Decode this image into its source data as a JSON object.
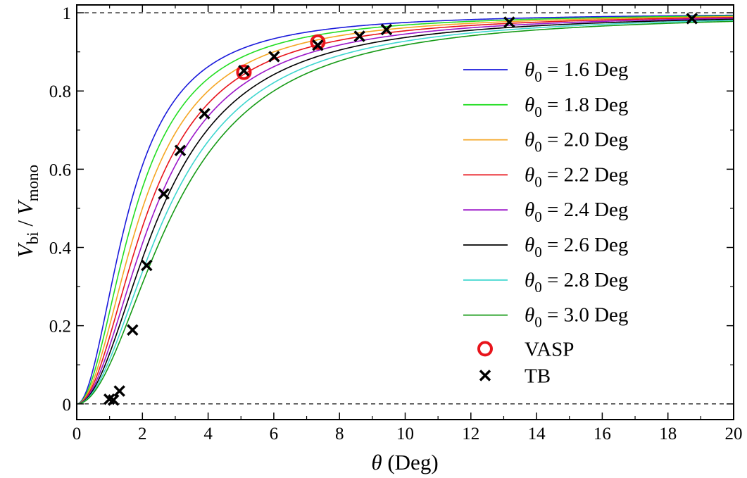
{
  "chart_data": {
    "type": "line",
    "xlabel": {
      "symbol": "θ",
      "text": " (Deg)"
    },
    "ylabel": {
      "v1": "V",
      "sub1": "bi",
      "sep": " / ",
      "v2": "V",
      "sub2": "mono"
    },
    "xlim": [
      0,
      20
    ],
    "ylim": [
      -0.04,
      1.02
    ],
    "xticks": [
      0,
      2,
      4,
      6,
      8,
      10,
      12,
      14,
      16,
      18,
      20
    ],
    "xtick_labels": [
      "0",
      "2",
      "4",
      "6",
      "8",
      "10",
      "12",
      "14",
      "16",
      "18",
      "20"
    ],
    "yticks": [
      0,
      0.2,
      0.4,
      0.6,
      0.8,
      1
    ],
    "ytick_labels": [
      "0",
      "0.2",
      "0.4",
      "0.6",
      "0.8",
      "1"
    ],
    "reference_lines": [
      0,
      1
    ],
    "series": [
      {
        "name": "θ0 = 1.6 Deg",
        "theta0": 1.6,
        "symbol": "θ",
        "sub": "0",
        "label": " = 1.6 Deg",
        "color": "#1a1adb"
      },
      {
        "name": "θ0 = 1.8 Deg",
        "theta0": 1.8,
        "symbol": "θ",
        "sub": "0",
        "label": " = 1.8 Deg",
        "color": "#22dd22"
      },
      {
        "name": "θ0 = 2.0 Deg",
        "theta0": 2.0,
        "symbol": "θ",
        "sub": "0",
        "label": " = 2.0 Deg",
        "color": "#f5a623"
      },
      {
        "name": "θ0 = 2.2 Deg",
        "theta0": 2.2,
        "symbol": "θ",
        "sub": "0",
        "label": " = 2.2 Deg",
        "color": "#e8141b"
      },
      {
        "name": "θ0 = 2.4 Deg",
        "theta0": 2.4,
        "symbol": "θ",
        "sub": "0",
        "label": " = 2.4 Deg",
        "color": "#9b16c9"
      },
      {
        "name": "θ0 = 2.6 Deg",
        "theta0": 2.6,
        "symbol": "θ",
        "sub": "0",
        "label": " = 2.6 Deg",
        "color": "#000000"
      },
      {
        "name": "θ0 = 2.8 Deg",
        "theta0": 2.8,
        "symbol": "θ",
        "sub": "0",
        "label": " = 2.8 Deg",
        "color": "#3dd6cf"
      },
      {
        "name": "θ0 = 3.0 Deg",
        "theta0": 3.0,
        "symbol": "θ",
        "sub": "0",
        "label": " = 3.0 Deg",
        "color": "#159a15"
      }
    ],
    "vasp": {
      "label": "VASP",
      "color": "#e8141b",
      "points": [
        {
          "x": 5.09,
          "y": 0.848
        },
        {
          "x": 7.34,
          "y": 0.925
        }
      ]
    },
    "tb": {
      "label": "TB",
      "color": "#000000",
      "points": [
        {
          "x": 0.99,
          "y": 0.012
        },
        {
          "x": 1.12,
          "y": 0.01
        },
        {
          "x": 1.3,
          "y": 0.033
        },
        {
          "x": 1.7,
          "y": 0.189
        },
        {
          "x": 2.13,
          "y": 0.354
        },
        {
          "x": 2.65,
          "y": 0.537
        },
        {
          "x": 3.15,
          "y": 0.648
        },
        {
          "x": 3.89,
          "y": 0.742
        },
        {
          "x": 5.09,
          "y": 0.852
        },
        {
          "x": 6.01,
          "y": 0.888
        },
        {
          "x": 7.34,
          "y": 0.917
        },
        {
          "x": 8.61,
          "y": 0.94
        },
        {
          "x": 9.43,
          "y": 0.957
        },
        {
          "x": 13.17,
          "y": 0.976
        },
        {
          "x": 18.73,
          "y": 0.985
        }
      ]
    }
  }
}
